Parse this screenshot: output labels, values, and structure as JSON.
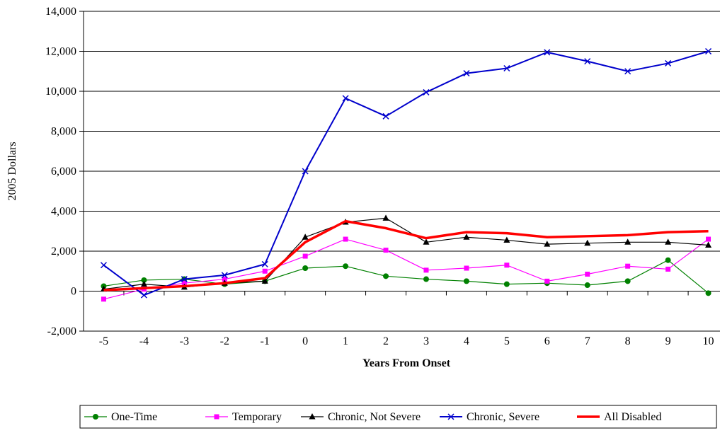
{
  "chart_data": {
    "type": "line",
    "title": "",
    "xlabel": "Years From Onset",
    "ylabel": "2005 Dollars",
    "ylim": [
      -2000,
      14000
    ],
    "yticks": [
      -2000,
      0,
      2000,
      4000,
      6000,
      8000,
      10000,
      12000,
      14000
    ],
    "ytick_labels": [
      "-2,000",
      "0",
      "2,000",
      "4,000",
      "6,000",
      "8,000",
      "10,000",
      "12,000",
      "14,000"
    ],
    "categories": [
      "-5",
      "-4",
      "-3",
      "-2",
      "-1",
      "0",
      "1",
      "2",
      "3",
      "4",
      "5",
      "6",
      "7",
      "8",
      "9",
      "10"
    ],
    "grid": "horizontal",
    "legend_position": "bottom",
    "series": [
      {
        "name": "One-Time",
        "color": "#008000",
        "marker": "circle",
        "values": [
          250,
          550,
          600,
          350,
          500,
          1150,
          1250,
          750,
          600,
          500,
          350,
          400,
          300,
          500,
          1550,
          -100
        ]
      },
      {
        "name": "Temporary",
        "color": "#ff00ff",
        "marker": "square",
        "values": [
          -400,
          100,
          400,
          600,
          1000,
          1750,
          2600,
          2050,
          1050,
          1150,
          1300,
          500,
          850,
          1250,
          1100,
          2600
        ]
      },
      {
        "name": "Chronic, Not Severe",
        "color": "#000000",
        "marker": "triangle",
        "values": [
          100,
          350,
          200,
          400,
          500,
          2700,
          3450,
          3650,
          2450,
          2700,
          2550,
          2350,
          2400,
          2450,
          2450,
          2300
        ]
      },
      {
        "name": "Chronic, Severe",
        "color": "#0000cc",
        "marker": "x",
        "values": [
          1300,
          -200,
          600,
          800,
          1350,
          6000,
          9650,
          8750,
          9950,
          10900,
          11150,
          11950,
          11500,
          11000,
          11400,
          12000
        ]
      },
      {
        "name": "All Disabled",
        "color": "#ff0000",
        "marker": "none",
        "values": [
          50,
          150,
          250,
          400,
          650,
          2450,
          3500,
          3150,
          2650,
          2950,
          2900,
          2700,
          2750,
          2800,
          2950,
          3000
        ]
      }
    ]
  }
}
